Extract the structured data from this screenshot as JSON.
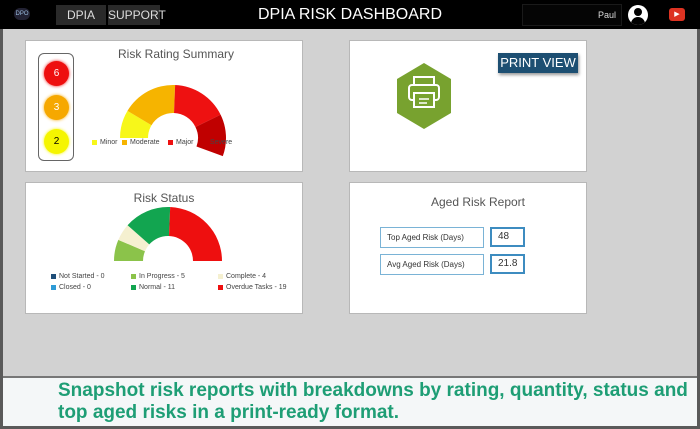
{
  "header": {
    "logo": "DPO",
    "nav": [
      "DPIA",
      "SUPPORT"
    ],
    "title": "DPIA RISK DASHBOARD",
    "user": "Paul",
    "icons": [
      "user-avatar-icon",
      "youtube-icon"
    ]
  },
  "rating": {
    "title": "Risk Rating Summary",
    "lights": [
      {
        "value": "6",
        "color": "#ee0f0f"
      },
      {
        "value": "3",
        "color": "#f6a800"
      },
      {
        "value": "2",
        "color": "#f5f500"
      }
    ]
  },
  "status": {
    "title": "Risk Status"
  },
  "print": {
    "button": "PRINT VIEW",
    "icon": "printer-icon",
    "color": "#78a22f"
  },
  "aged": {
    "title": "Aged Risk Report",
    "rows": [
      {
        "label": "Top Aged Risk (Days)",
        "value": "48"
      },
      {
        "label": "Avg Aged Risk (Days)",
        "value": "21.8"
      }
    ]
  },
  "caption": "Snapshot risk reports with breakdowns by rating, quantity, status and top aged risks in a print-ready format.",
  "chart_data": [
    {
      "type": "pie",
      "title": "Risk Rating Summary",
      "categories": [
        "Minor",
        "Moderate",
        "Major",
        "Severe"
      ],
      "values": [
        2,
        4,
        4,
        3
      ],
      "colors": [
        "#f7f71a",
        "#f6b400",
        "#ee1111",
        "#c00000"
      ],
      "legend": "bottom",
      "note": "values estimated"
    },
    {
      "type": "pie",
      "title": "Risk Status",
      "categories": [
        "Not Started - 0",
        "In Progress - 5",
        "Complete - 4",
        "Closed - 0",
        "Normal - 11",
        "Overdue Tasks - 19"
      ],
      "values": [
        0,
        5,
        4,
        0,
        11,
        19
      ],
      "colors": [
        "#1f4e79",
        "#8bc34a",
        "#f5f0d0",
        "#2e9bd6",
        "#12a550",
        "#ee0f0f"
      ],
      "legend": "bottom"
    }
  ]
}
